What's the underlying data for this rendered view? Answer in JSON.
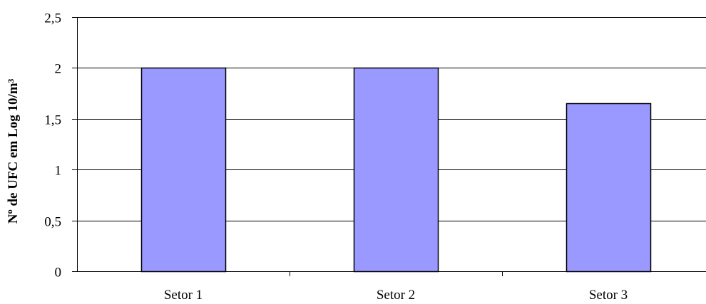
{
  "chart_data": {
    "type": "bar",
    "title": "",
    "xlabel": "",
    "ylabel": "Nº de UFC em Log 10/m³",
    "categories": [
      "Setor 1",
      "Setor 2",
      "Setor 3"
    ],
    "values": [
      2.0,
      2.0,
      1.65
    ],
    "ylim": [
      0,
      2.5
    ],
    "yticks": [
      0,
      0.5,
      1,
      1.5,
      2,
      2.5
    ],
    "ytick_labels": [
      "0",
      "0,5",
      "1",
      "1,5",
      "2",
      "2,5"
    ],
    "grid": true,
    "legend": "none",
    "colors": {
      "bar_fill": "#9999ff",
      "bar_stroke": "#000000",
      "grid": "#000000",
      "axis": "#000000"
    }
  }
}
